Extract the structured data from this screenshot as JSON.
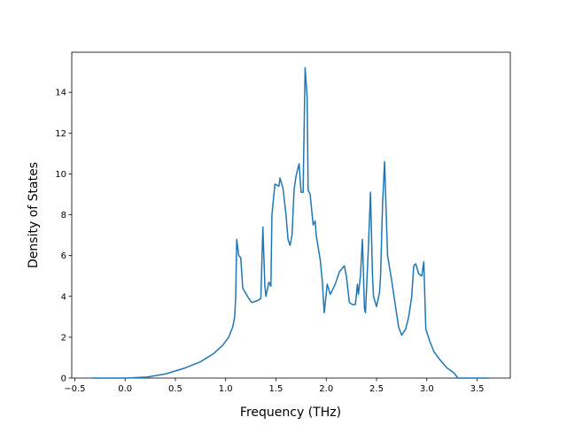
{
  "chart_data": {
    "type": "line",
    "x_label": "Frequency (THz)",
    "y_label": "Density of States",
    "xlim": [
      -0.53,
      3.83
    ],
    "ylim": [
      0,
      15.96
    ],
    "xticks": [
      {
        "value": -0.5,
        "label": "−0.5"
      },
      {
        "value": 0,
        "label": "0.0"
      },
      {
        "value": 0.5,
        "label": "0.5"
      },
      {
        "value": 1,
        "label": "1.0"
      },
      {
        "value": 1.5,
        "label": "1.5"
      },
      {
        "value": 2,
        "label": "2.0"
      },
      {
        "value": 2.5,
        "label": "2.5"
      },
      {
        "value": 3,
        "label": "3.0"
      },
      {
        "value": 3.5,
        "label": "3.5"
      }
    ],
    "yticks": [
      0,
      2,
      4,
      6,
      8,
      10,
      12,
      14
    ],
    "series": [
      {
        "color": "#1f77b4",
        "x": [
          -0.33,
          0,
          0.22,
          0.4,
          0.6,
          0.75,
          0.88,
          0.97,
          1.03,
          1.07,
          1.09,
          1.1,
          1.11,
          1.13,
          1.15,
          1.17,
          1.23,
          1.26,
          1.32,
          1.35,
          1.37,
          1.39,
          1.4,
          1.43,
          1.45,
          1.46,
          1.49,
          1.53,
          1.54,
          1.57,
          1.6,
          1.62,
          1.64,
          1.66,
          1.68,
          1.7,
          1.73,
          1.75,
          1.77,
          1.79,
          1.81,
          1.82,
          1.84,
          1.87,
          1.89,
          1.9,
          1.94,
          1.96,
          1.98,
          2.01,
          2.04,
          2.09,
          2.13,
          2.18,
          2.2,
          2.23,
          2.26,
          2.29,
          2.31,
          2.32,
          2.34,
          2.36,
          2.38,
          2.39,
          2.42,
          2.44,
          2.46,
          2.47,
          2.5,
          2.53,
          2.54,
          2.56,
          2.58,
          2.6,
          2.61,
          2.65,
          2.68,
          2.72,
          2.75,
          2.79,
          2.82,
          2.85,
          2.87,
          2.89,
          2.92,
          2.95,
          2.97,
          2.99,
          3.03,
          3.07,
          3.13,
          3.2,
          3.27,
          3.31,
          3.62
        ],
        "values": [
          0,
          0,
          0.05,
          0.2,
          0.5,
          0.8,
          1.2,
          1.6,
          2.0,
          2.5,
          3.0,
          4.0,
          6.8,
          6.0,
          5.9,
          4.4,
          3.9,
          3.7,
          3.8,
          3.9,
          7.4,
          4.5,
          4.0,
          4.7,
          4.5,
          8.0,
          9.5,
          9.4,
          9.8,
          9.3,
          8.0,
          6.8,
          6.5,
          7.0,
          9.2,
          9.9,
          10.5,
          9.1,
          9.1,
          15.2,
          13.8,
          9.2,
          9.0,
          7.5,
          7.7,
          7.0,
          5.8,
          4.8,
          3.2,
          4.6,
          4.1,
          4.6,
          5.2,
          5.5,
          5.0,
          3.7,
          3.6,
          3.6,
          4.6,
          4.1,
          5.0,
          6.8,
          3.4,
          3.2,
          6.5,
          9.1,
          5.0,
          4.0,
          3.5,
          4.2,
          5.0,
          8.5,
          10.6,
          7.5,
          6.0,
          4.8,
          3.8,
          2.5,
          2.1,
          2.4,
          3.0,
          4.0,
          5.5,
          5.6,
          5.1,
          5.0,
          5.7,
          2.4,
          1.8,
          1.3,
          0.9,
          0.5,
          0.25,
          0,
          0
        ]
      }
    ]
  }
}
